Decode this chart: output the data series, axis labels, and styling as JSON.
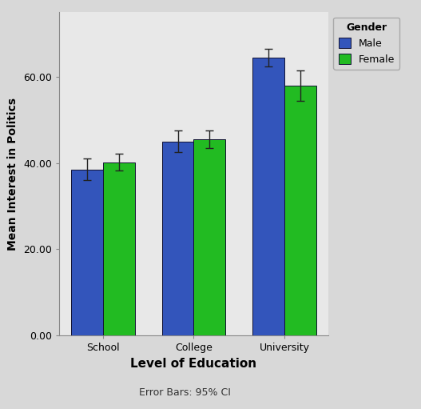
{
  "categories": [
    "School",
    "College",
    "University"
  ],
  "male_values": [
    38.5,
    45.0,
    64.5
  ],
  "female_values": [
    40.2,
    45.5,
    58.0
  ],
  "male_errors": [
    2.5,
    2.5,
    2.0
  ],
  "female_errors": [
    2.0,
    2.0,
    3.5
  ],
  "male_color": "#3355bb",
  "female_color": "#22bb22",
  "bar_edge_color": "#111133",
  "error_color": "#222222",
  "xlabel": "Level of Education",
  "ylabel": "Mean Interest in Politics",
  "legend_title": "Gender",
  "legend_labels": [
    "Male",
    "Female"
  ],
  "ylim": [
    0,
    75
  ],
  "ytick_vals": [
    0.0,
    20.0,
    40.0,
    60.0
  ],
  "ytick_labels": [
    "0.00",
    "20.00",
    "40.00",
    "60.00"
  ],
  "plot_bg_color": "#e8e8e8",
  "fig_bg_color": "#d8d8d8",
  "bar_width": 0.35,
  "footnote": "Error Bars: 95% CI",
  "xlabel_fontsize": 11,
  "ylabel_fontsize": 10,
  "tick_fontsize": 9,
  "legend_fontsize": 9,
  "footnote_fontsize": 9
}
